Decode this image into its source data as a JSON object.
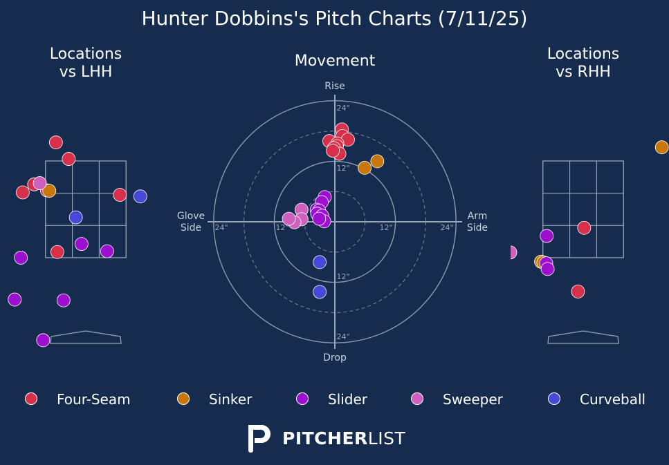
{
  "title": "Hunter Dobbins's Pitch Charts (7/11/25)",
  "panels": {
    "lhh_title_1": "Locations",
    "lhh_title_2": "vs LHH",
    "movement_title": "Movement",
    "rhh_title_1": "Locations",
    "rhh_title_2": "vs RHH"
  },
  "movement_axis_labels": {
    "top": "Rise",
    "bottom": "Drop",
    "left_1": "Glove",
    "left_2": "Side",
    "right_1": "Arm",
    "right_2": "Side",
    "ring_24_top": "24\"",
    "ring_12_top": "12\"",
    "ring_12_bottom": "12\"",
    "ring_24_bottom": "24\"",
    "ring_24_left": "24\"",
    "ring_12_left": "12\"",
    "ring_12_right": "12\"",
    "ring_24_right": "24\""
  },
  "colors": {
    "background": "#152c4e",
    "Four-Seam": "#d8304a",
    "Sinker": "#c8780a",
    "Slider": "#9d10d0",
    "Sweeper": "#d060c0",
    "Curveball": "#4848d8",
    "grid": "#9aa6b8"
  },
  "legend": [
    {
      "name": "Four-Seam"
    },
    {
      "name": "Sinker"
    },
    {
      "name": "Slider"
    },
    {
      "name": "Sweeper"
    },
    {
      "name": "Curveball"
    }
  ],
  "brand": {
    "bold": "PITCHER",
    "light": "LIST",
    "logo_icon": "pitcherlist-p-logo-icon"
  },
  "chart_data": [
    {
      "type": "scatter",
      "name_printed": "Locations vs LHH",
      "units": "inches from plate center (x) and height (y, zone 18-42)",
      "xlim": [
        -21,
        21
      ],
      "zone": {
        "x": [
          -8.5,
          8.5
        ],
        "y": [
          18,
          42
        ]
      },
      "points": [
        {
          "pitch": "Four-Seam",
          "x": -6.3,
          "y": 46.6
        },
        {
          "pitch": "Four-Seam",
          "x": -3.6,
          "y": 42.5
        },
        {
          "pitch": "Four-Seam",
          "x": -10.9,
          "y": 36.2
        },
        {
          "pitch": "Four-Seam",
          "x": -8.2,
          "y": 34.7
        },
        {
          "pitch": "Four-Seam",
          "x": -13.3,
          "y": 34.2
        },
        {
          "pitch": "Four-Seam",
          "x": 7.2,
          "y": 33.6
        },
        {
          "pitch": "Four-Seam",
          "x": -6.0,
          "y": 19.4
        },
        {
          "pitch": "Sinker",
          "x": -7.7,
          "y": 34.6
        },
        {
          "pitch": "Sweeper",
          "x": -9.7,
          "y": 36.5
        },
        {
          "pitch": "Curveball",
          "x": 11.5,
          "y": 33.2
        },
        {
          "pitch": "Curveball",
          "x": -2.1,
          "y": 28.0
        },
        {
          "pitch": "Slider",
          "x": -0.9,
          "y": 21.4
        },
        {
          "pitch": "Slider",
          "x": 4.5,
          "y": 19.6
        },
        {
          "pitch": "Slider",
          "x": -13.7,
          "y": 18.0
        },
        {
          "pitch": "Slider",
          "x": -15.0,
          "y": 7.6
        },
        {
          "pitch": "Slider",
          "x": -4.7,
          "y": 7.4
        },
        {
          "pitch": "Slider",
          "x": -9.0,
          "y": -2.5
        }
      ]
    },
    {
      "type": "scatter",
      "name_printed": "Movement",
      "units": "inches of horizontal break (x) and induced vertical break (y)",
      "rings": [
        6,
        12,
        18,
        24
      ],
      "points": [
        {
          "pitch": "Four-Seam",
          "x": 1.4,
          "y": 18.3
        },
        {
          "pitch": "Four-Seam",
          "x": 1.5,
          "y": 17.0
        },
        {
          "pitch": "Four-Seam",
          "x": 2.6,
          "y": 16.3
        },
        {
          "pitch": "Four-Seam",
          "x": -1.1,
          "y": 16.0
        },
        {
          "pitch": "Four-Seam",
          "x": 0.5,
          "y": 15.5
        },
        {
          "pitch": "Four-Seam",
          "x": 0.4,
          "y": 15.0
        },
        {
          "pitch": "Four-Seam",
          "x": -0.2,
          "y": 14.6
        },
        {
          "pitch": "Four-Seam",
          "x": 0.9,
          "y": 13.5
        },
        {
          "pitch": "Four-Seam",
          "x": -0.4,
          "y": 14.1
        },
        {
          "pitch": "Sinker",
          "x": 8.4,
          "y": 12.0
        },
        {
          "pitch": "Sinker",
          "x": 5.9,
          "y": 10.7
        },
        {
          "pitch": "Slider",
          "x": -2.0,
          "y": 4.9
        },
        {
          "pitch": "Slider",
          "x": -2.6,
          "y": 3.9
        },
        {
          "pitch": "Slider",
          "x": -3.6,
          "y": 2.4
        },
        {
          "pitch": "Slider",
          "x": -3.1,
          "y": 2.2
        },
        {
          "pitch": "Slider",
          "x": -3.5,
          "y": 1.6
        },
        {
          "pitch": "Slider",
          "x": -2.5,
          "y": 1.2
        },
        {
          "pitch": "Slider",
          "x": -2.1,
          "y": 0.1
        },
        {
          "pitch": "Slider",
          "x": -3.1,
          "y": 0.6
        },
        {
          "pitch": "Sweeper",
          "x": -6.6,
          "y": 2.4
        },
        {
          "pitch": "Sweeper",
          "x": -6.6,
          "y": 0.5
        },
        {
          "pitch": "Sweeper",
          "x": -8.0,
          "y": -0.1
        },
        {
          "pitch": "Sweeper",
          "x": -9.1,
          "y": 0.6
        },
        {
          "pitch": "Curveball",
          "x": -3.0,
          "y": -8.0
        },
        {
          "pitch": "Curveball",
          "x": -3.0,
          "y": -13.9
        }
      ]
    },
    {
      "type": "scatter",
      "name_printed": "Locations vs RHH",
      "units": "inches from plate center (x) and height (y, zone 18-42)",
      "xlim": [
        -21,
        21
      ],
      "zone": {
        "x": [
          -8.5,
          8.5
        ],
        "y": [
          18,
          42
        ]
      },
      "points": [
        {
          "pitch": "Sinker",
          "x": 16.6,
          "y": 45.4
        },
        {
          "pitch": "Sweeper",
          "x": -22.0,
          "y": 36.8
        },
        {
          "pitch": "Four-Seam",
          "x": 0.2,
          "y": 25.4
        },
        {
          "pitch": "Four-Seam",
          "x": -1.1,
          "y": 9.6
        },
        {
          "pitch": "Slider",
          "x": -7.7,
          "y": 23.4
        },
        {
          "pitch": "Sweeper",
          "x": -15.4,
          "y": 19.3
        },
        {
          "pitch": "Sinker",
          "x": -8.9,
          "y": 17.0
        },
        {
          "pitch": "Sinker",
          "x": -8.4,
          "y": 16.8
        },
        {
          "pitch": "Slider",
          "x": -7.8,
          "y": 16.6
        },
        {
          "pitch": "Slider",
          "x": -7.5,
          "y": 15.2
        }
      ]
    }
  ]
}
